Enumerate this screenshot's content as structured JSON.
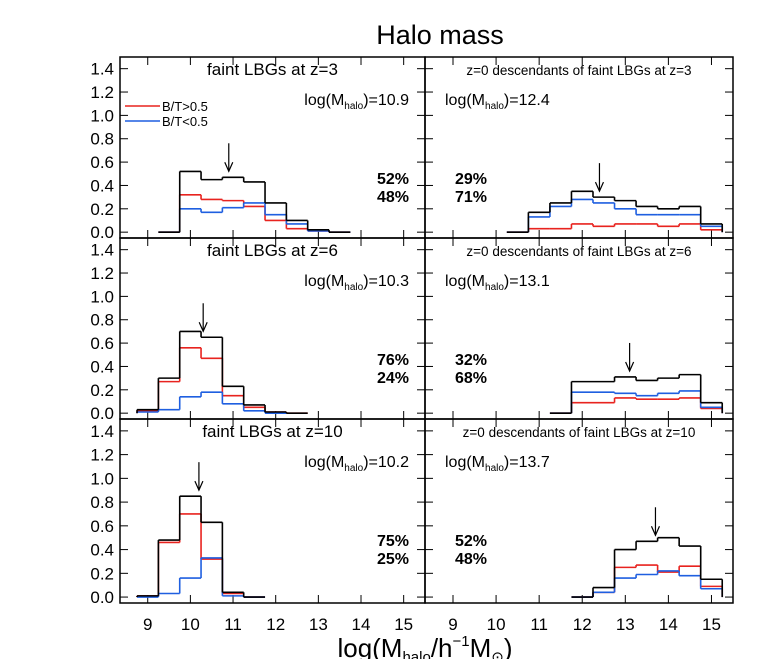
{
  "chart_data": {
    "type": "histogram",
    "title": "Halo mass",
    "xlabel": [
      "log(M",
      "halo",
      "/h",
      "−1",
      "M",
      "⊙",
      ")"
    ],
    "median_label": [
      "log(M",
      "halo",
      ")="
    ],
    "legend": [
      {
        "name": "B/T>0.5",
        "color": "#e8231f"
      },
      {
        "name": "B/T<0.5",
        "color": "#1f5fe0"
      }
    ],
    "total_color": "#000000",
    "bins": [
      8.75,
      9.25,
      9.75,
      10.25,
      10.75,
      11.25,
      11.75,
      12.25,
      12.75,
      13.25,
      13.75,
      14.25,
      14.75,
      15.25
    ],
    "xlim": [
      8.35,
      15.5
    ],
    "ylim": [
      -0.05,
      1.5
    ],
    "xticks": [
      9,
      10,
      11,
      12,
      13,
      14,
      15
    ],
    "yticks": [
      {
        "value": 0,
        "label": "0.0"
      },
      0.2,
      0.4,
      0.6,
      0.8,
      {
        "value": 1,
        "label": "1.0"
      },
      1.2,
      1.4
    ],
    "panels": [
      {
        "title": "faint LBGs at z=3",
        "median": 10.9,
        "shares": {
          "values": [
            52,
            48
          ],
          "value_labels": [
            "52%",
            "48%"
          ]
        },
        "total": [
          0,
          0,
          0.52,
          0.45,
          0.47,
          0.43,
          0.25,
          0.1,
          0.02,
          0,
          0,
          0,
          0
        ],
        "series": [
          [
            0,
            0,
            0.32,
            0.28,
            0.27,
            0.22,
            0.1,
            0.03,
            0.01,
            0,
            0,
            0,
            0
          ],
          [
            0,
            0,
            0.2,
            0.17,
            0.21,
            0.25,
            0.15,
            0.07,
            0.01,
            0,
            0,
            0,
            0
          ]
        ]
      },
      {
        "title": "z=0 descendants of faint LBGs at z=3",
        "median": 12.4,
        "shares": {
          "values": [
            29,
            71
          ],
          "value_labels": [
            "29%",
            "71%"
          ]
        },
        "total": [
          0,
          0,
          0,
          0,
          0.17,
          0.25,
          0.35,
          0.3,
          0.27,
          0.22,
          0.2,
          0.22,
          0.07
        ],
        "series": [
          [
            0,
            0,
            0,
            0,
            0.03,
            0.03,
            0.07,
            0.05,
            0.07,
            0.07,
            0.05,
            0.07,
            0.02
          ],
          [
            0,
            0,
            0,
            0,
            0.13,
            0.22,
            0.28,
            0.25,
            0.2,
            0.15,
            0.15,
            0.15,
            0.05
          ]
        ]
      },
      {
        "title": "faint LBGs at z=6",
        "median": 10.3,
        "shares": {
          "values": [
            76,
            24
          ],
          "value_labels": [
            "76%",
            "24%"
          ]
        },
        "total": [
          0.03,
          0.3,
          0.7,
          0.65,
          0.23,
          0.07,
          0.01,
          0,
          0,
          0,
          0,
          0,
          0
        ],
        "series": [
          [
            0.02,
            0.27,
            0.56,
            0.47,
            0.15,
            0.05,
            0.01,
            0,
            0,
            0,
            0,
            0,
            0
          ],
          [
            0.01,
            0.03,
            0.14,
            0.18,
            0.08,
            0.02,
            0,
            0,
            0,
            0,
            0,
            0,
            0
          ]
        ]
      },
      {
        "title": "z=0 descendants of faint LBGs at z=6",
        "median": 13.1,
        "shares": {
          "values": [
            32,
            68
          ],
          "value_labels": [
            "32%",
            "68%"
          ]
        },
        "total": [
          0,
          0,
          0,
          0,
          0,
          0,
          0.27,
          0.27,
          0.31,
          0.28,
          0.3,
          0.33,
          0.09
        ],
        "series": [
          [
            0,
            0,
            0,
            0,
            0,
            0,
            0.09,
            0.09,
            0.13,
            0.12,
            0.12,
            0.13,
            0.04
          ],
          [
            0,
            0,
            0,
            0,
            0,
            0,
            0.18,
            0.18,
            0.17,
            0.15,
            0.17,
            0.19,
            0.05
          ]
        ]
      },
      {
        "title": "faint LBGs at z=10",
        "median": 10.2,
        "shares": {
          "values": [
            75,
            25
          ],
          "value_labels": [
            "75%",
            "25%"
          ]
        },
        "total": [
          0.01,
          0.48,
          0.85,
          0.63,
          0.04,
          0,
          0,
          0,
          0,
          0,
          0,
          0,
          0
        ],
        "series": [
          [
            0.01,
            0.46,
            0.7,
            0.32,
            0.03,
            0,
            0,
            0,
            0,
            0,
            0,
            0,
            0
          ],
          [
            0,
            0.03,
            0.16,
            0.33,
            0.01,
            0,
            0,
            0,
            0,
            0,
            0,
            0,
            0
          ]
        ]
      },
      {
        "title": "z=0 descendants of faint LBGs at z=10",
        "median": 13.7,
        "shares": {
          "values": [
            52,
            48
          ],
          "value_labels": [
            "52%",
            "48%"
          ]
        },
        "total": [
          0,
          0,
          0,
          0,
          0,
          0,
          0,
          0.08,
          0.4,
          0.47,
          0.5,
          0.43,
          0.15
        ],
        "series": [
          [
            0,
            0,
            0,
            0,
            0,
            0,
            0,
            0.04,
            0.25,
            0.27,
            0.21,
            0.26,
            0.09
          ],
          [
            0,
            0,
            0,
            0,
            0,
            0,
            0,
            0.04,
            0.16,
            0.19,
            0.22,
            0.18,
            0.07
          ]
        ]
      }
    ]
  }
}
